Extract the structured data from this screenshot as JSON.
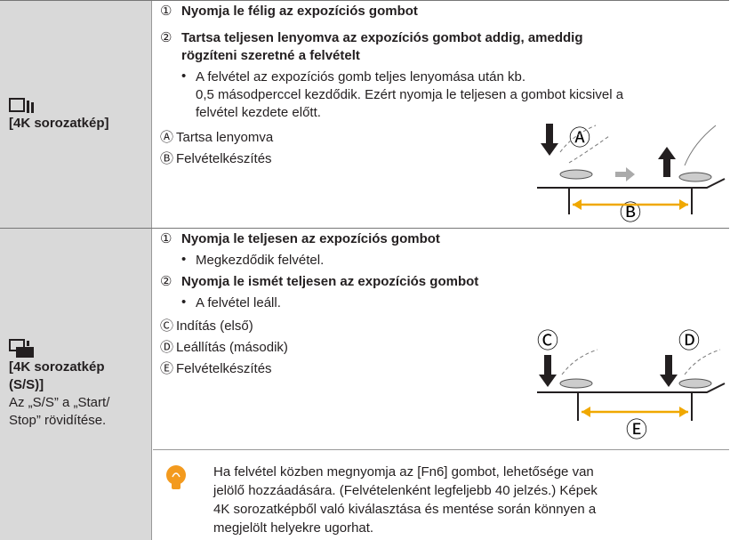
{
  "bullet_symbol": "•",
  "rows": [
    {
      "mode_label": [
        "[4K sorozatkép]"
      ],
      "note": [],
      "steps": [
        {
          "num": "①",
          "lines": [
            "Nyomja le félig az expozíciós gombot"
          ],
          "bullets": []
        },
        {
          "num": "②",
          "lines": [
            "Tartsa teljesen lenyomva az expozíciós gombot addig, ameddig",
            "rögzíteni szeretné a felvételt"
          ],
          "bullets": [
            [
              "A felvétel az expozíciós gomb teljes lenyomása után kb.",
              "0,5 másodperccel kezdődik. Ezért nyomja le teljesen a gombot kicsivel a",
              "felvétel kezdete előtt."
            ]
          ]
        }
      ],
      "legend": [
        {
          "letter": "Ⓐ",
          "text": "Tartsa lenyomva"
        },
        {
          "letter": "Ⓑ",
          "text": "Felvételkészítés"
        }
      ]
    },
    {
      "mode_label": [
        "[4K sorozatkép",
        "(S/S)]"
      ],
      "note": [
        "Az „S/S” a „Start/",
        "Stop” rövidítése."
      ],
      "steps": [
        {
          "num": "①",
          "lines": [
            "Nyomja le teljesen az expozíciós gombot"
          ],
          "bullets": [
            [
              "Megkezdődik felvétel."
            ]
          ]
        },
        {
          "num": "②",
          "lines": [
            "Nyomja le ismét teljesen az expozíciós gombot"
          ],
          "bullets": [
            [
              "A felvétel leáll."
            ]
          ]
        }
      ],
      "legend": [
        {
          "letter": "Ⓒ",
          "text": "Indítás (első)"
        },
        {
          "letter": "Ⓓ",
          "text": "Leállítás (második)"
        },
        {
          "letter": "Ⓔ",
          "text": "Felvételkészítés"
        }
      ]
    }
  ],
  "tip": {
    "lines": [
      "Ha felvétel közben megnyomja az [Fn6] gombot, lehetősége van",
      "jelölő hozzáadására. (Felvételenként legfeljebb 40 jelzés.) Képek",
      "4K sorozatképből való kiválasztása és mentése során könnyen a",
      "megjelölt helyekre ugorhat."
    ]
  }
}
